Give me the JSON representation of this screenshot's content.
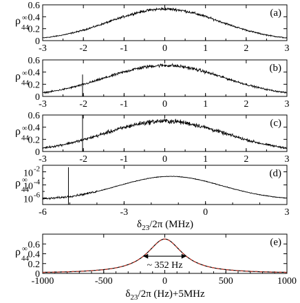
{
  "chart_data": [
    {
      "panel": "(a)",
      "type": "line",
      "ylabel": {
        "main": "ρ",
        "sup": "∞",
        "sub": "44"
      },
      "xlim": [
        -3,
        3
      ],
      "ylim": [
        0,
        0.6
      ],
      "xticks": [
        "-3",
        "-2",
        "-1",
        "0",
        "1",
        "2",
        "3"
      ],
      "yticks": [
        "0",
        "0.2",
        "0.4",
        "0.6"
      ],
      "series": [
        {
          "shape": "gaussian",
          "peak": 0.53,
          "center": 0,
          "width": 1.35,
          "noise": 0.02
        }
      ]
    },
    {
      "panel": "(b)",
      "type": "line",
      "ylabel": {
        "main": "ρ",
        "sup": "∞",
        "sub": "44"
      },
      "xlim": [
        -3,
        3
      ],
      "ylim": [
        0,
        0.6
      ],
      "xticks": [
        "-3",
        "-2",
        "-1",
        "0",
        "1",
        "2",
        "3"
      ],
      "yticks": [
        "0",
        "0.2",
        "0.4",
        "0.6"
      ],
      "series": [
        {
          "shape": "gaussian",
          "peak": 0.51,
          "center": 0,
          "width": 1.45,
          "noise": 0.025,
          "spikes": [
            {
              "x": -2.02,
              "y": 0.36
            }
          ]
        }
      ]
    },
    {
      "panel": "(c)",
      "type": "line",
      "ylabel": {
        "main": "ρ",
        "sup": "∞",
        "sub": "44"
      },
      "xlim": [
        -3,
        3
      ],
      "ylim": [
        0,
        0.6
      ],
      "xticks": [
        "-3",
        "-2",
        "-1",
        "0",
        "1",
        "2",
        "3"
      ],
      "yticks": [
        "0",
        "0.2",
        "0.4",
        "0.6"
      ],
      "series": [
        {
          "shape": "gaussian",
          "peak": 0.5,
          "center": 0,
          "width": 1.45,
          "noise": 0.035,
          "spikes": [
            {
              "x": -2.02,
              "y": 0.6
            }
          ]
        }
      ]
    },
    {
      "panel": "(d)",
      "type": "line",
      "log_y": true,
      "ylabel": {
        "main": "ρ",
        "sup": "∞",
        "sub": "44"
      },
      "xlim": [
        -6,
        3
      ],
      "ylim_log10": [
        -7,
        -1
      ],
      "xticks": [
        "-6",
        "-3",
        "0",
        "3"
      ],
      "yticks": [
        {
          "base": "10",
          "exp": "-2"
        },
        {
          "base": "10",
          "exp": "-4"
        },
        {
          "base": "10",
          "exp": "-6"
        }
      ],
      "series": [
        {
          "shape": "log-gaussian",
          "center": -1.3,
          "peak_log10": -2.7,
          "floor_log10": -6.3,
          "width": 1.9,
          "noise": 0.06,
          "spikes": [
            {
              "x": -5.05,
              "log10": -1.3
            }
          ]
        }
      ]
    },
    {
      "panel": "(e)",
      "type": "line",
      "ylabel": {
        "main": "ρ",
        "sup": "∞",
        "sub": "44"
      },
      "xlim": [
        -1000,
        1000
      ],
      "ylim": [
        0,
        0.8
      ],
      "xticks": [
        "-1000",
        "-500",
        "0",
        "500",
        "1000"
      ],
      "yticks": [
        "0",
        "0.2",
        "0.4",
        "0.6"
      ],
      "series": [
        {
          "shape": "lorentzian",
          "peak": 0.7,
          "center": 0,
          "fwhm": 352,
          "color": "#000000",
          "style": "solid"
        },
        {
          "shape": "lorentzian",
          "peak": 0.7,
          "center": 0,
          "fwhm": 352,
          "color": "#c0392b",
          "style": "dashed"
        }
      ],
      "annotation": "~ 352 Hz",
      "annotation_span": [
        -176,
        176
      ],
      "annotation_y": 0.35
    }
  ],
  "shared_xlabel_top": {
    "main": "δ",
    "sub": "23",
    "rest": "/2π (MHz)"
  },
  "shared_xlabel_bottom": {
    "main": "δ",
    "sub": "23",
    "rest": "/2π (Hz)+5MHz"
  }
}
